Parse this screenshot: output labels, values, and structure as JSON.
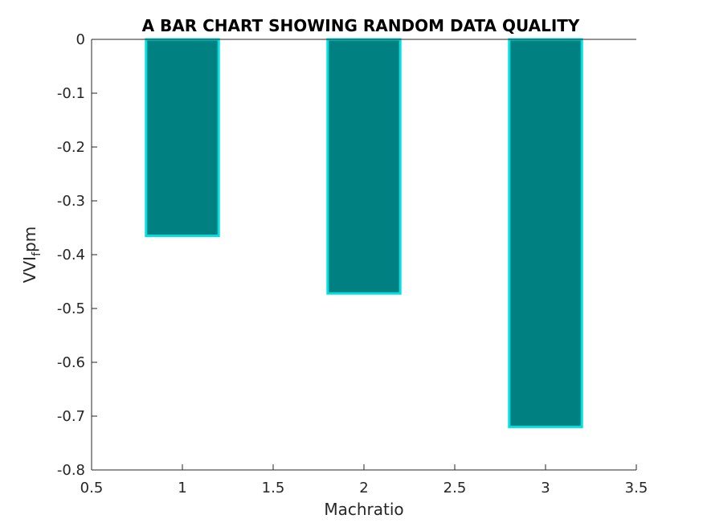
{
  "chart_data": {
    "type": "bar",
    "title": "A BAR CHART SHOWING RANDOM DATA QUALITY",
    "xlabel": "Machratio",
    "ylabel": {
      "main": "VVI",
      "subscript": "f",
      "suffix": "pm"
    },
    "x": [
      1,
      2,
      3
    ],
    "values": [
      -0.365,
      -0.472,
      -0.72
    ],
    "bar_width": 0.4,
    "xlim": [
      0.5,
      3.5
    ],
    "ylim": [
      -0.8,
      0
    ],
    "xticks": [
      0.5,
      1,
      1.5,
      2,
      2.5,
      3,
      3.5
    ],
    "xtick_labels": [
      "0.5",
      "1",
      "1.5",
      "2",
      "2.5",
      "3",
      "3.5"
    ],
    "yticks": [
      0,
      -0.1,
      -0.2,
      -0.3,
      -0.4,
      -0.5,
      -0.6,
      -0.7,
      -0.8
    ],
    "ytick_labels": [
      "0",
      "-0.1",
      "-0.2",
      "-0.3",
      "-0.4",
      "-0.5",
      "-0.6",
      "-0.7",
      "-0.8"
    ],
    "grid": false,
    "legend": "none",
    "colors": {
      "bar_fill": "#008080",
      "bar_edge": "#00e0e0",
      "axis": "#262626"
    }
  }
}
